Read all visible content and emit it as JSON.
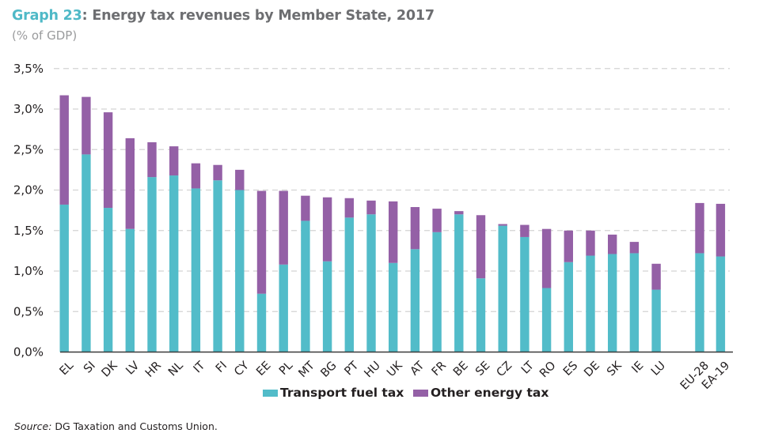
{
  "header": {
    "graph_label": "Graph 23",
    "title_rest": ": Energy tax revenues by Member State, 2017",
    "subtitle": "(% of GDP)"
  },
  "colors": {
    "transport": "#52bcc9",
    "other": "#9460a6",
    "title_accent": "#4fb9c7"
  },
  "source": {
    "label": "Source:",
    "text": " DG Taxation and Customs Union."
  },
  "chart_data": {
    "type": "bar",
    "stacked": true,
    "title": "Graph 23: Energy tax revenues by Member State, 2017",
    "subtitle": "(% of GDP)",
    "xlabel": "",
    "ylabel": "% of GDP",
    "ylim": [
      0,
      3.5
    ],
    "yticks": [
      0,
      0.5,
      1.0,
      1.5,
      2.0,
      2.5,
      3.0,
      3.5
    ],
    "ytick_labels": [
      "0,0%",
      "0,5%",
      "1,0%",
      "1,5%",
      "2,0%",
      "2,5%",
      "3,0%",
      "3,5%"
    ],
    "grid": true,
    "legend_position": "bottom",
    "categories": [
      "EL",
      "SI",
      "DK",
      "LV",
      "HR",
      "NL",
      "IT",
      "FI",
      "CY",
      "EE",
      "PL",
      "MT",
      "BG",
      "PT",
      "HU",
      "UK",
      "AT",
      "FR",
      "BE",
      "SE",
      "CZ",
      "LT",
      "RO",
      "ES",
      "DE",
      "SK",
      "IE",
      "LU",
      "EU-28",
      "EA-19"
    ],
    "gap_before": [
      "EU-28"
    ],
    "series": [
      {
        "name": "Transport fuel tax",
        "color": "#52bcc9",
        "values": [
          1.82,
          2.44,
          1.78,
          1.52,
          2.16,
          2.18,
          2.02,
          2.12,
          2.0,
          0.72,
          1.08,
          1.62,
          1.12,
          1.66,
          1.7,
          1.1,
          1.27,
          1.48,
          1.7,
          0.91,
          1.56,
          1.42,
          0.79,
          1.11,
          1.19,
          1.21,
          1.22,
          0.77,
          1.22,
          1.18
        ]
      },
      {
        "name": "Other energy tax",
        "color": "#9460a6",
        "values": [
          1.35,
          0.71,
          1.18,
          1.12,
          0.43,
          0.36,
          0.31,
          0.19,
          0.25,
          1.27,
          0.91,
          0.31,
          0.79,
          0.24,
          0.17,
          0.76,
          0.52,
          0.29,
          0.04,
          0.78,
          0.02,
          0.15,
          0.73,
          0.39,
          0.31,
          0.24,
          0.14,
          0.32,
          0.62,
          0.65
        ]
      }
    ]
  }
}
